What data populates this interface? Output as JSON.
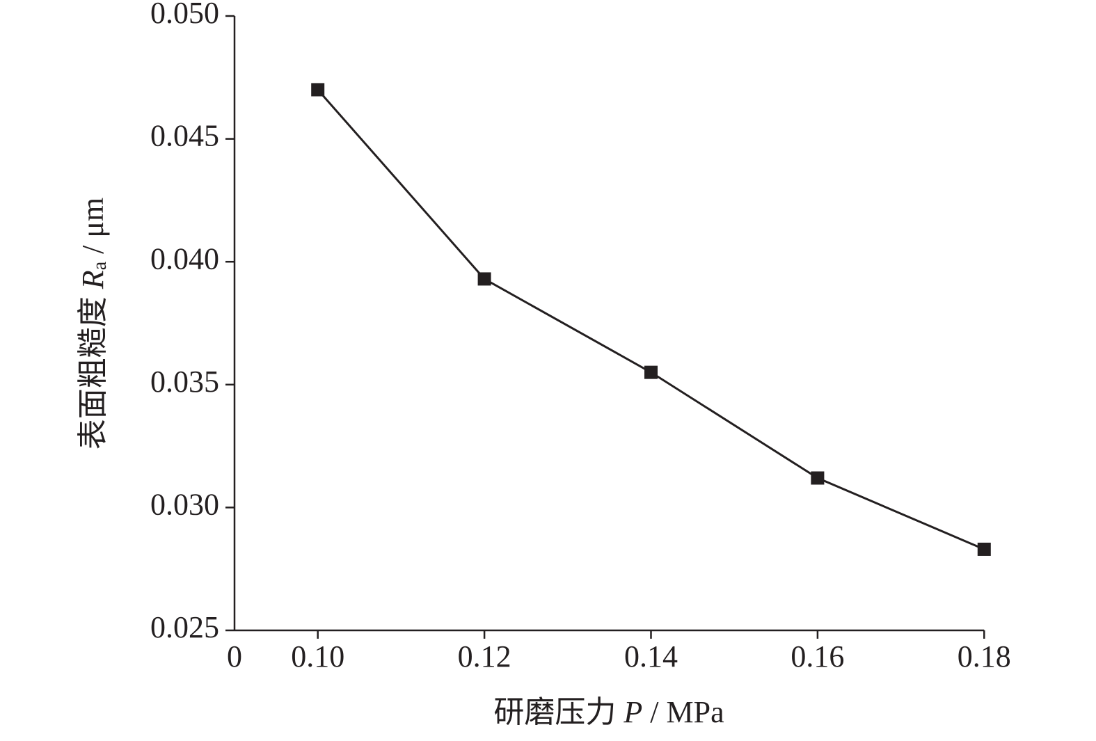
{
  "chart_data": {
    "type": "line",
    "x_axis_start_label": "0",
    "categories": [
      "0.10",
      "0.12",
      "0.14",
      "0.16",
      "0.18"
    ],
    "series": [
      {
        "color": "#231f20",
        "values": [
          0.047,
          0.0393,
          0.0355,
          0.0312,
          0.0283
        ]
      }
    ],
    "ylim": [
      0.025,
      0.05
    ],
    "yticks": [
      0.025,
      {
        "value": 0.03,
        "label": "0.030"
      },
      0.035,
      {
        "value": 0.04,
        "label": "0.040"
      },
      0.045,
      {
        "value": 0.05,
        "label": "0.050"
      }
    ],
    "xlabel": {
      "text": "研磨压力",
      "var": "P",
      "unit": "/ MPa"
    },
    "ylabel": {
      "text": "表面粗糙度",
      "var": "R",
      "sub": "a",
      "unit": "/ μm"
    },
    "marker": "square"
  }
}
